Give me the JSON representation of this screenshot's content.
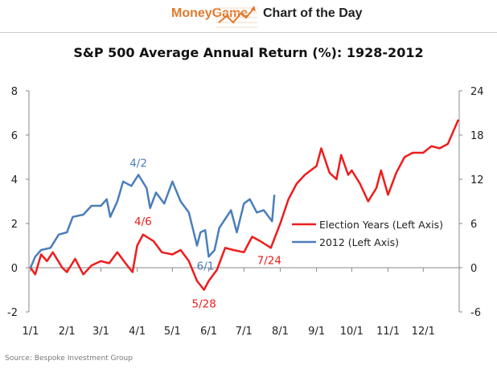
{
  "header": {
    "brand": "MoneyGame",
    "tagline": "Chart of the Day",
    "brand_color": "#e07a2e"
  },
  "source": "Source: Bespoke Investment Group",
  "chart_data": {
    "type": "line",
    "title": "S&P 500 Average Annual Return (%): 1928-2012",
    "x_tick_labels": [
      "1/1",
      "2/1",
      "3/1",
      "4/1",
      "5/1",
      "6/1",
      "7/1",
      "8/1",
      "9/1",
      "10/1",
      "11/1",
      "12/1"
    ],
    "y_left": {
      "range": [
        -2,
        8
      ],
      "ticks": [
        -2,
        0,
        2,
        4,
        6,
        8
      ]
    },
    "y_right": {
      "range": [
        -6,
        24
      ],
      "ticks": [
        -6,
        0,
        6,
        12,
        18,
        24
      ]
    },
    "grid": false,
    "legend_placement": "center-right",
    "series": [
      {
        "name": "Election Years (Left Axis)",
        "color": "#ee1c1c",
        "x": [
          "1/1",
          "1/5",
          "1/10",
          "1/15",
          "1/20",
          "1/28",
          "2/1",
          "2/8",
          "2/15",
          "2/22",
          "3/1",
          "3/8",
          "3/15",
          "3/22",
          "3/28",
          "4/1",
          "4/6",
          "4/15",
          "4/22",
          "5/1",
          "5/8",
          "5/15",
          "5/22",
          "5/28",
          "6/1",
          "6/8",
          "6/15",
          "6/22",
          "7/1",
          "7/8",
          "7/15",
          "7/24",
          "8/1",
          "8/8",
          "8/15",
          "8/22",
          "9/1",
          "9/5",
          "9/12",
          "9/18",
          "9/22",
          "9/28",
          "10/1",
          "10/8",
          "10/15",
          "10/22",
          "10/26",
          "11/1",
          "11/8",
          "11/15",
          "11/22",
          "12/1",
          "12/8",
          "12/15",
          "12/22",
          "12/31"
        ],
        "y": [
          0,
          -0.3,
          0.6,
          0.3,
          0.7,
          0.0,
          -0.2,
          0.4,
          -0.3,
          0.1,
          0.3,
          0.2,
          0.7,
          0.2,
          -0.2,
          1.0,
          1.5,
          1.2,
          0.7,
          0.6,
          0.8,
          0.3,
          -0.6,
          -1.0,
          -0.6,
          -0.1,
          0.9,
          0.8,
          0.7,
          1.4,
          1.2,
          0.9,
          2.0,
          3.1,
          3.8,
          4.2,
          4.6,
          5.4,
          4.3,
          4.0,
          5.1,
          4.2,
          4.4,
          3.8,
          3.0,
          3.6,
          4.4,
          3.3,
          4.3,
          5.0,
          5.2,
          5.2,
          5.5,
          5.4,
          5.6,
          6.7
        ]
      },
      {
        "name": "2012 (Left Axis)",
        "color": "#4a7ebb",
        "x": [
          "1/1",
          "1/5",
          "1/10",
          "1/18",
          "1/25",
          "2/1",
          "2/6",
          "2/15",
          "2/22",
          "3/1",
          "3/6",
          "3/9",
          "3/15",
          "3/20",
          "3/27",
          "4/2",
          "4/9",
          "4/12",
          "4/17",
          "4/24",
          "5/1",
          "5/8",
          "5/15",
          "5/22",
          "5/25",
          "5/29",
          "6/1",
          "6/6",
          "6/10",
          "6/15",
          "6/20",
          "6/25",
          "7/1",
          "7/6",
          "7/12",
          "7/18",
          "7/25",
          "7/27"
        ],
        "y": [
          0,
          0.5,
          0.8,
          0.9,
          1.5,
          1.6,
          2.3,
          2.4,
          2.8,
          2.8,
          3.1,
          2.3,
          3.0,
          3.9,
          3.7,
          4.2,
          3.6,
          2.7,
          3.4,
          2.9,
          3.9,
          3.0,
          2.5,
          1.0,
          1.6,
          1.7,
          0.5,
          0.8,
          1.8,
          2.2,
          2.6,
          1.6,
          2.9,
          3.1,
          2.5,
          2.6,
          2.1,
          3.3
        ]
      }
    ],
    "annotations": [
      {
        "text": "4/2",
        "x": "4/2",
        "y": 4.2,
        "series": "2012 (Left Axis)"
      },
      {
        "text": "4/6",
        "x": "4/6",
        "y": 1.5,
        "series": "Election Years (Left Axis)"
      },
      {
        "text": "6/1",
        "x": "6/1",
        "y": 0.5,
        "series": "2012 (Left Axis)"
      },
      {
        "text": "5/28",
        "x": "5/28",
        "y": -1.0,
        "series": "Election Years (Left Axis)"
      },
      {
        "text": "7/24",
        "x": "7/24",
        "y": 0.9,
        "series": "Election Years (Left Axis)"
      }
    ]
  }
}
